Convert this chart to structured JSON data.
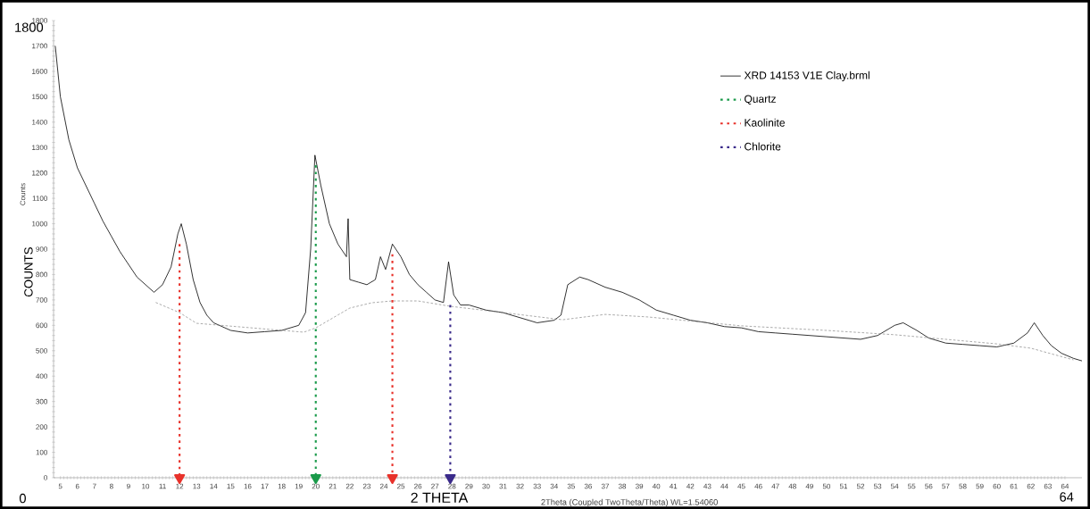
{
  "chart_data": {
    "type": "line",
    "xlabel": "2 THETA",
    "ylabel": "COUNTS",
    "annotations": [
      "Counts",
      "2Theta (Coupled TwoTheta/Theta) WL=1.54060",
      "1800",
      "0",
      "64"
    ],
    "xlim": [
      4.6,
      65
    ],
    "ylim": [
      0,
      1800
    ],
    "xticks": [
      5,
      6,
      7,
      8,
      9,
      10,
      11,
      12,
      13,
      14,
      15,
      16,
      17,
      18,
      19,
      20,
      21,
      22,
      23,
      24,
      25,
      26,
      27,
      28,
      29,
      30,
      31,
      32,
      33,
      34,
      35,
      36,
      37,
      38,
      39,
      40,
      41,
      42,
      43,
      44,
      45,
      46,
      47,
      48,
      49,
      50,
      51,
      52,
      53,
      54,
      55,
      56,
      57,
      58,
      59,
      60,
      61,
      62,
      63,
      64
    ],
    "yticks": [
      0,
      100,
      200,
      300,
      400,
      500,
      600,
      700,
      800,
      900,
      1000,
      1100,
      1200,
      1300,
      1400,
      1500,
      1600,
      1700,
      1800
    ],
    "legend": "top right",
    "grid": false,
    "series": [
      {
        "name": "XRD 14153 V1E Clay.brml",
        "color": "#000000",
        "line_style": "solid",
        "x": [
          4.7,
          5.0,
          5.5,
          6,
          6.5,
          7,
          7.5,
          8,
          8.5,
          9,
          9.5,
          10,
          10.5,
          11,
          11.5,
          11.9,
          12.1,
          12.4,
          12.8,
          13.2,
          13.6,
          14,
          15,
          16,
          17,
          18,
          19,
          19.4,
          19.7,
          19.95,
          20.3,
          20.8,
          21.3,
          21.8,
          21.9,
          22,
          22.5,
          23,
          23.5,
          23.8,
          24.1,
          24.5,
          25,
          25.5,
          26,
          26.5,
          27,
          27.5,
          27.8,
          28.1,
          28.5,
          29,
          30,
          31,
          32,
          33,
          34,
          34.4,
          34.8,
          35.5,
          36,
          37,
          38,
          39,
          40,
          41,
          42,
          43,
          44,
          45,
          46,
          47,
          48,
          49,
          50,
          51,
          52,
          53,
          54,
          54.5,
          55.3,
          56,
          57,
          58,
          59,
          60,
          61,
          61.8,
          62.2,
          62.7,
          63.2,
          63.8,
          64.5,
          65
        ],
        "values": [
          1700,
          1500,
          1330,
          1220,
          1150,
          1080,
          1010,
          950,
          890,
          840,
          790,
          760,
          730,
          760,
          830,
          960,
          1000,
          920,
          780,
          690,
          640,
          610,
          580,
          570,
          575,
          580,
          600,
          650,
          900,
          1270,
          1150,
          1000,
          920,
          870,
          1020,
          780,
          770,
          760,
          780,
          870,
          820,
          920,
          870,
          800,
          760,
          730,
          700,
          690,
          850,
          720,
          680,
          680,
          660,
          650,
          630,
          610,
          620,
          640,
          760,
          790,
          780,
          750,
          730,
          700,
          660,
          640,
          620,
          610,
          595,
          590,
          575,
          570,
          565,
          560,
          555,
          550,
          545,
          560,
          600,
          610,
          580,
          550,
          530,
          525,
          520,
          515,
          530,
          570,
          610,
          560,
          520,
          490,
          470,
          460
        ]
      },
      {
        "color": "#808080",
        "line_style": "dashed",
        "x": [
          10.6,
          12,
          13,
          19.3,
          20,
          22,
          23.3,
          24.5,
          26,
          27.9,
          34.5,
          37,
          39.5,
          45,
          50,
          54,
          60,
          62,
          64.5
        ],
        "values": [
          690,
          650,
          608,
          573,
          590,
          668,
          689,
          696,
          696,
          675,
          622,
          643,
          633,
          598,
          580,
          563,
          527,
          510,
          464
        ]
      },
      {
        "name": "Quartz",
        "color": "#1a9a4a",
        "line_style": "dotted",
        "x": [
          20,
          20
        ],
        "values": [
          1230,
          0
        ]
      },
      {
        "name": "Kaolinite",
        "color": "#e8322b",
        "line_style": "dotted",
        "x": [
          12,
          12,
          null,
          24.5,
          24.5
        ],
        "values": [
          920,
          0,
          null,
          880,
          0
        ]
      },
      {
        "name": "Chlorite",
        "color": "#3a2a8a",
        "line_style": "dotted",
        "x": [
          27.9,
          27.9
        ],
        "values": [
          680,
          0
        ]
      }
    ]
  }
}
